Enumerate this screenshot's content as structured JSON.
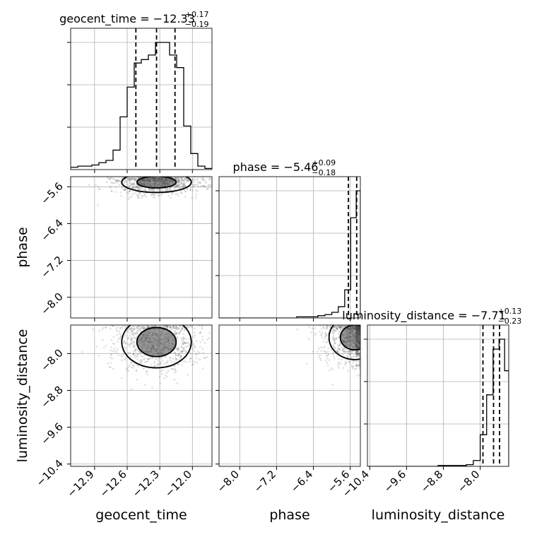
{
  "chart_data": {
    "type": "corner",
    "parameters": [
      "geocent_time",
      "phase",
      "luminosity_distance"
    ],
    "axis_ranges": {
      "geocent_time": [
        -13.12,
        -11.82
      ],
      "phase": [
        -8.45,
        -5.38
      ],
      "luminosity_distance": [
        -10.45,
        -7.38
      ]
    },
    "ticks": {
      "geocent_time": [
        -12.9,
        -12.6,
        -12.3,
        -12.0
      ],
      "phase": [
        -8.0,
        -7.2,
        -6.4,
        -5.6
      ],
      "luminosity_distance": [
        -10.4,
        -9.6,
        -8.8,
        -8.0
      ]
    },
    "tick_labels": {
      "geocent_time": [
        "−12.9",
        "−12.6",
        "−12.3",
        "−12.0"
      ],
      "phase": [
        "−8.0",
        "−7.2",
        "−6.4",
        "−5.6"
      ],
      "luminosity_distance": [
        "−10.4",
        "−9.6",
        "−8.8",
        "−8.0"
      ]
    },
    "titles": [
      {
        "main": "geocent_time = −12.33",
        "sup": "+0.17",
        "sub": "−0.19"
      },
      {
        "main": "phase = −5.46",
        "sup": "+0.09",
        "sub": "−0.18"
      },
      {
        "main": "luminosity_distance = −7.71",
        "sup": "+0.13",
        "sub": "−0.23"
      }
    ],
    "quantiles": {
      "geocent_time": [
        -12.52,
        -12.33,
        -12.16
      ],
      "phase": [
        -5.64,
        -5.46,
        -5.37
      ],
      "luminosity_distance": [
        -7.94,
        -7.71,
        -7.58
      ]
    },
    "histograms": {
      "geocent_time": {
        "edges": [
          -13.12,
          -13.055,
          -12.99,
          -12.925,
          -12.86,
          -12.795,
          -12.73,
          -12.665,
          -12.6,
          -12.535,
          -12.47,
          -12.405,
          -12.34,
          -12.275,
          -12.21,
          -12.145,
          -12.08,
          -12.015,
          -11.95,
          -11.885,
          -11.82
        ],
        "counts": [
          2,
          3,
          3,
          4,
          6,
          8,
          17,
          46,
          72,
          93,
          96,
          100,
          111,
          111,
          100,
          89,
          38,
          14,
          3,
          1
        ]
      },
      "phase": {
        "edges": [
          -8.45,
          -8.297,
          -8.143,
          -7.99,
          -7.837,
          -7.683,
          -7.53,
          -7.377,
          -7.223,
          -7.07,
          -6.917,
          -6.763,
          -6.61,
          -6.457,
          -6.303,
          -6.15,
          -6.0,
          -5.86,
          -5.72,
          -5.59,
          -5.47,
          -5.38
        ],
        "counts": [
          0,
          0,
          0,
          0,
          0,
          0,
          0,
          0,
          0,
          0,
          0,
          1,
          1,
          1,
          2,
          3,
          5,
          10,
          25,
          89,
          113
        ]
      },
      "luminosity_distance": {
        "edges": [
          -10.45,
          -10.297,
          -10.143,
          -9.99,
          -9.837,
          -9.683,
          -9.53,
          -9.377,
          -9.223,
          -9.07,
          -8.917,
          -8.763,
          -8.61,
          -8.457,
          -8.303,
          -8.15,
          -8.0,
          -7.86,
          -7.72,
          -7.59,
          -7.47,
          -7.38
        ],
        "counts": [
          0,
          0,
          0,
          0,
          0,
          0,
          0,
          0,
          0,
          0,
          1,
          1,
          1,
          1,
          2,
          7,
          38,
          86,
          141,
          153,
          115
        ]
      }
    },
    "scatter_2d": [
      {
        "x_param": "geocent_time",
        "y_param": "phase",
        "center": [
          -12.33,
          -5.5
        ],
        "spread": [
          0.2,
          0.14
        ]
      },
      {
        "x_param": "geocent_time",
        "y_param": "luminosity_distance",
        "center": [
          -12.33,
          -7.75
        ],
        "spread": [
          0.2,
          0.35
        ]
      },
      {
        "x_param": "phase",
        "y_param": "luminosity_distance",
        "center": [
          -5.5,
          -7.65
        ],
        "spread": [
          0.35,
          0.3
        ]
      }
    ],
    "grid": true
  }
}
